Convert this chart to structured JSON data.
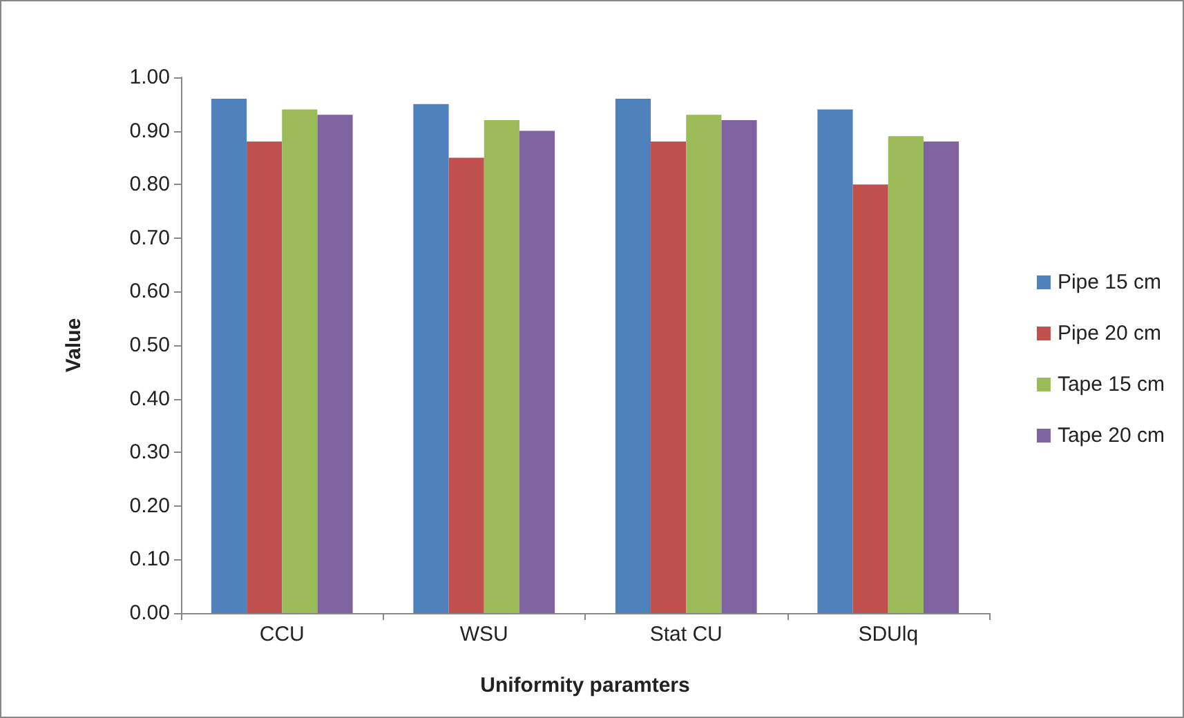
{
  "chart_data": {
    "type": "bar",
    "xlabel": "Uniformity paramters",
    "ylabel": "Value",
    "categories": [
      "CCU",
      "WSU",
      "Stat CU",
      "SDUlq"
    ],
    "series": [
      {
        "name": "Pipe 15 cm",
        "color": "#4f81bd",
        "values": [
          0.96,
          0.95,
          0.96,
          0.94
        ]
      },
      {
        "name": "Pipe 20 cm",
        "color": "#c0504d",
        "values": [
          0.88,
          0.85,
          0.88,
          0.8
        ]
      },
      {
        "name": "Tape 15 cm",
        "color": "#9bbb59",
        "values": [
          0.94,
          0.92,
          0.93,
          0.89
        ]
      },
      {
        "name": "Tape 20 cm",
        "color": "#8064a2",
        "values": [
          0.93,
          0.9,
          0.92,
          0.88
        ]
      }
    ],
    "ylim": [
      0,
      1
    ],
    "yticks": [
      {
        "value": 0,
        "label": "0.00"
      },
      {
        "value": 0.1,
        "label": "0.10"
      },
      {
        "value": 0.2,
        "label": "0.20"
      },
      {
        "value": 0.3,
        "label": "0.30"
      },
      {
        "value": 0.4,
        "label": "0.40"
      },
      {
        "value": 0.5,
        "label": "0.50"
      },
      {
        "value": 0.6,
        "label": "0.60"
      },
      {
        "value": 0.7,
        "label": "0.70"
      },
      {
        "value": 0.8,
        "label": "0.80"
      },
      {
        "value": 0.9,
        "label": "0.90"
      },
      {
        "value": 1,
        "label": "1.00"
      }
    ],
    "grid": false,
    "legend": "right"
  }
}
